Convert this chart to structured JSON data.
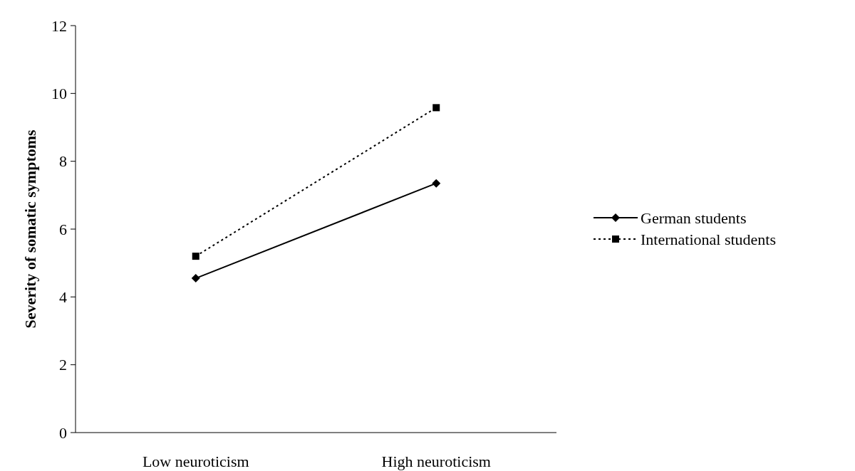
{
  "chart_data": {
    "type": "line",
    "ylabel": "Severity of somatic symptoms",
    "categories": [
      "Low neuroticism",
      "High neuroticism"
    ],
    "series": [
      {
        "name": "German students",
        "color": "#000000",
        "values": [
          4.55,
          7.35
        ],
        "marker": "diamond",
        "line_style": "solid"
      },
      {
        "name": "International students",
        "color": "#000000",
        "values": [
          5.2,
          9.58
        ],
        "marker": "square",
        "line_style": "dotted"
      }
    ],
    "ylim": [
      0,
      12
    ],
    "yticks": [
      0,
      2,
      4,
      6,
      8,
      10,
      12
    ],
    "grid": false,
    "legend": "right"
  }
}
